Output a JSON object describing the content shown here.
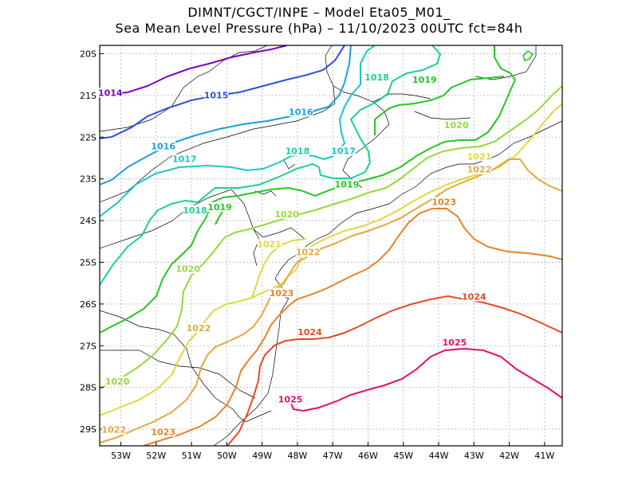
{
  "title_line1": "DIMNT/CGCT/INPE –  Model Eta05_M01_",
  "title_line2": "Sea Mean Level Pressure (hPa) – 11/10/2023 00UTC fct=84h",
  "map": {
    "lon_range": [
      -53.6,
      -40.5
    ],
    "lat_range": [
      -29.4,
      -19.8
    ],
    "lon_ticks": [
      {
        "value": -53,
        "label": "53W"
      },
      {
        "value": -52,
        "label": "52W"
      },
      {
        "value": -51,
        "label": "51W"
      },
      {
        "value": -50,
        "label": "50W"
      },
      {
        "value": -49,
        "label": "49W"
      },
      {
        "value": -48,
        "label": "48W"
      },
      {
        "value": -47,
        "label": "47W"
      },
      {
        "value": -46,
        "label": "46W"
      },
      {
        "value": -45,
        "label": "45W"
      },
      {
        "value": -44,
        "label": "44W"
      },
      {
        "value": -43,
        "label": "43W"
      },
      {
        "value": -42,
        "label": "42W"
      },
      {
        "value": -41,
        "label": "41W"
      }
    ],
    "lat_ticks": [
      {
        "value": -20,
        "label": "20S"
      },
      {
        "value": -21,
        "label": "21S"
      },
      {
        "value": -22,
        "label": "22S"
      },
      {
        "value": -23,
        "label": "23S"
      },
      {
        "value": -24,
        "label": "24S"
      },
      {
        "value": -25,
        "label": "25S"
      },
      {
        "value": -26,
        "label": "26S"
      },
      {
        "value": -27,
        "label": "27S"
      },
      {
        "value": -28,
        "label": "28S"
      },
      {
        "value": -29,
        "label": "29S"
      }
    ],
    "grid": true,
    "contour_labels": [
      {
        "text": "1014",
        "color": "#7a00c8",
        "lon": -53.3,
        "lat": -20.97
      },
      {
        "text": "1015",
        "color": "#2b50d8",
        "lon": -50.3,
        "lat": -21.03
      },
      {
        "text": "1016",
        "color": "#1a9fe0",
        "lon": -47.9,
        "lat": -21.43
      },
      {
        "text": "1016",
        "color": "#1a9fe0",
        "lon": -51.8,
        "lat": -22.25
      },
      {
        "text": "1017",
        "color": "#19c8c8",
        "lon": -51.2,
        "lat": -22.56
      },
      {
        "text": "1017",
        "color": "#19c8c8",
        "lon": -46.7,
        "lat": -22.37
      },
      {
        "text": "1018",
        "color": "#1ccf9a",
        "lon": -48.0,
        "lat": -22.37
      },
      {
        "text": "1018",
        "color": "#1ccf9a",
        "lon": -45.75,
        "lat": -20.6
      },
      {
        "text": "1018",
        "color": "#1ccf9a",
        "lon": -50.9,
        "lat": -23.79
      },
      {
        "text": "1019",
        "color": "#22c822",
        "lon": -50.2,
        "lat": -23.71
      },
      {
        "text": "1019",
        "color": "#22c822",
        "lon": -46.6,
        "lat": -23.17
      },
      {
        "text": "1019",
        "color": "#22c822",
        "lon": -44.4,
        "lat": -20.66
      },
      {
        "text": "1020",
        "color": "#96d83c",
        "lon": -48.3,
        "lat": -23.88
      },
      {
        "text": "1020",
        "color": "#96d83c",
        "lon": -51.1,
        "lat": -25.19
      },
      {
        "text": "1020",
        "color": "#96d83c",
        "lon": -43.5,
        "lat": -21.75
      },
      {
        "text": "1020",
        "color": "#96d83c",
        "lon": -53.1,
        "lat": -27.89
      },
      {
        "text": "1021",
        "color": "#e0d83c",
        "lon": -48.8,
        "lat": -24.6
      },
      {
        "text": "1021",
        "color": "#e0d83c",
        "lon": -42.85,
        "lat": -22.5
      },
      {
        "text": "1022",
        "color": "#e4a83c",
        "lon": -47.7,
        "lat": -24.79
      },
      {
        "text": "1022",
        "color": "#e4a83c",
        "lon": -42.85,
        "lat": -22.81
      },
      {
        "text": "1022",
        "color": "#e4a83c",
        "lon": -50.8,
        "lat": -26.61
      },
      {
        "text": "1022",
        "color": "#e4a83c",
        "lon": -53.2,
        "lat": -29.05
      },
      {
        "text": "1023",
        "color": "#e8822a",
        "lon": -48.45,
        "lat": -25.77
      },
      {
        "text": "1023",
        "color": "#e8822a",
        "lon": -43.85,
        "lat": -23.59
      },
      {
        "text": "1023",
        "color": "#e8822a",
        "lon": -51.8,
        "lat": -29.1
      },
      {
        "text": "1024",
        "color": "#e84828",
        "lon": -47.65,
        "lat": -26.71
      },
      {
        "text": "1024",
        "color": "#e84828",
        "lon": -43.0,
        "lat": -25.86
      },
      {
        "text": "1025",
        "color": "#e0106e",
        "lon": -48.2,
        "lat": -28.32
      },
      {
        "text": "1025",
        "color": "#e0106e",
        "lon": -43.55,
        "lat": -26.96
      }
    ]
  }
}
